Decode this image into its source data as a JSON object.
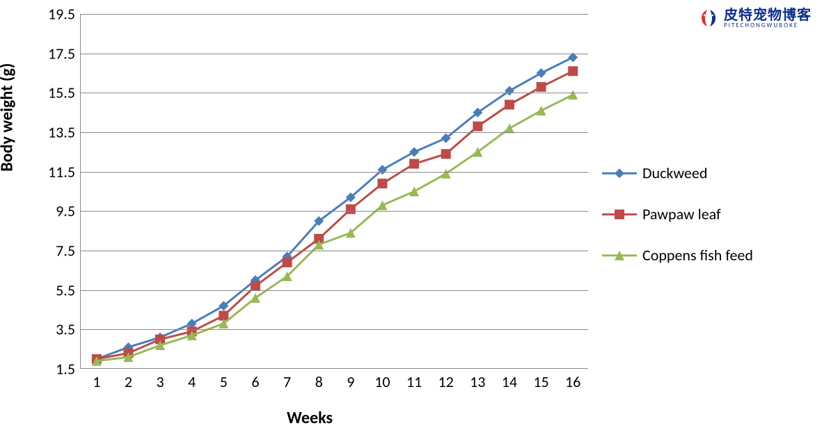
{
  "chart": {
    "type": "line",
    "y_axis_label": "Body weight (g)",
    "x_axis_label": "Weeks",
    "label_fontsize": 24,
    "tick_fontsize": 22,
    "ylim": [
      1.5,
      19.5
    ],
    "ytick_step": 2,
    "y_ticks": [
      1.5,
      3.5,
      5.5,
      7.5,
      9.5,
      11.5,
      13.5,
      15.5,
      17.5,
      19.5
    ],
    "x_ticks": [
      1,
      2,
      3,
      4,
      5,
      6,
      7,
      8,
      9,
      10,
      11,
      12,
      13,
      14,
      15,
      16
    ],
    "background_color": "#ffffff",
    "grid_color": "#888888",
    "axis_color": "#888888",
    "line_width": 3,
    "marker_size": 14,
    "series": [
      {
        "name": "Duckweed",
        "color": "#4a7ebb",
        "marker": "diamond",
        "values": [
          2.0,
          2.6,
          3.1,
          3.8,
          4.7,
          6.0,
          7.2,
          9.0,
          10.2,
          11.6,
          12.5,
          13.2,
          14.5,
          15.6,
          16.5,
          17.3
        ]
      },
      {
        "name": "Pawpaw leaf",
        "color": "#be4b48",
        "marker": "square",
        "values": [
          2.0,
          2.3,
          3.0,
          3.4,
          4.2,
          5.7,
          6.9,
          8.1,
          9.6,
          10.9,
          11.9,
          12.4,
          13.8,
          14.9,
          15.8,
          16.6
        ]
      },
      {
        "name": "Coppens fish feed",
        "color": "#98b954",
        "marker": "triangle",
        "values": [
          1.9,
          2.1,
          2.7,
          3.2,
          3.8,
          5.1,
          6.2,
          7.8,
          8.4,
          9.8,
          10.5,
          11.4,
          12.5,
          13.7,
          14.6,
          15.4
        ]
      }
    ]
  },
  "watermark": {
    "main_text": "皮特宠物博客",
    "sub_text": "PITECHONGWUBOKE",
    "text_color": "#0a2e8c",
    "icon_primary": "#0a2e8c",
    "icon_accent": "#e03030"
  }
}
